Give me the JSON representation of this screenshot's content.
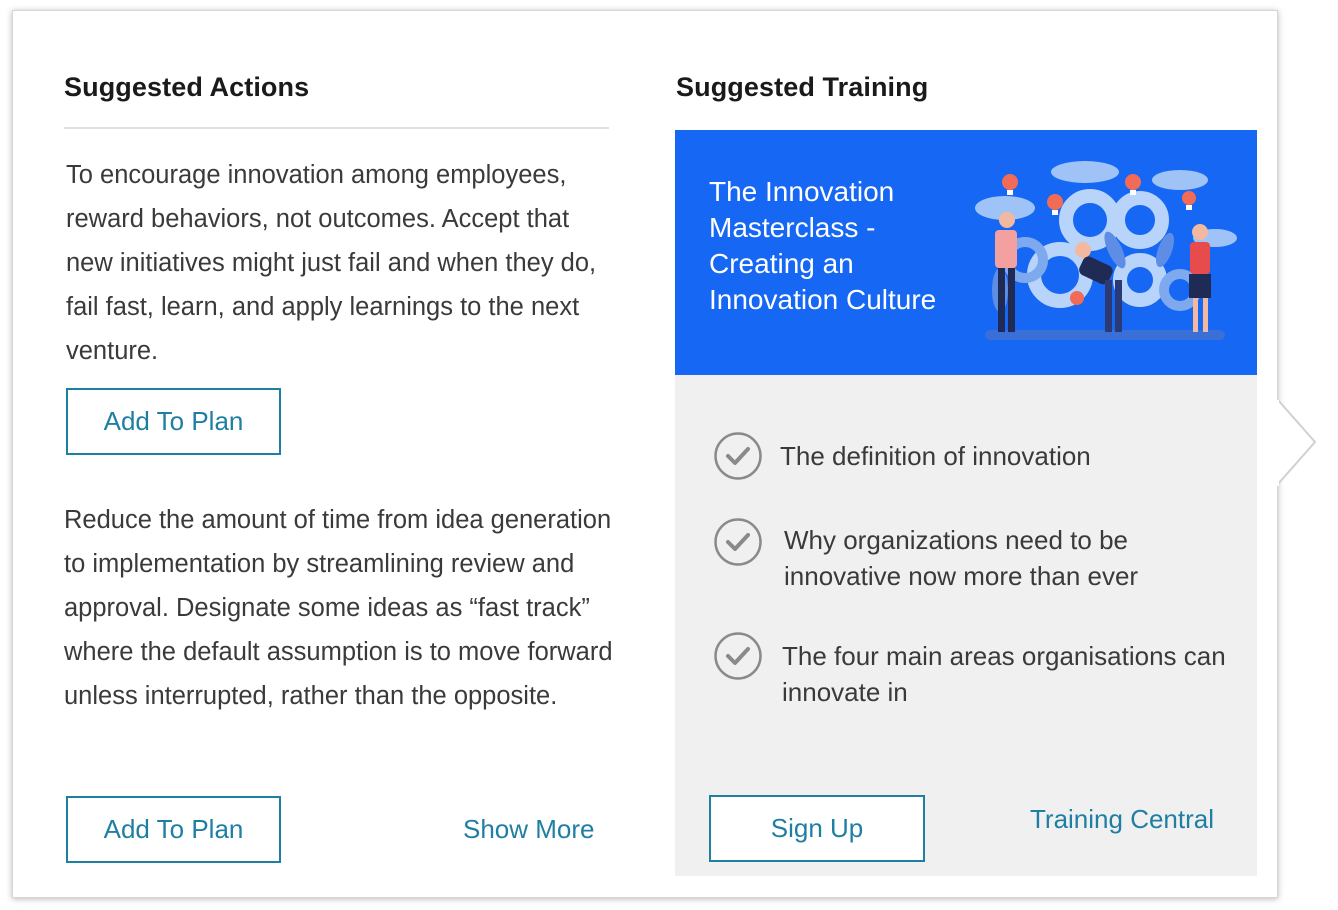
{
  "actions": {
    "title": "Suggested Actions",
    "items": [
      {
        "text": "To encourage innovation among employees, reward behaviors, not outcomes.  Accept that new initiatives might just fail and when they do, fail fast, learn, and apply learnings to the next venture.",
        "button_label": "Add To Plan"
      },
      {
        "text": "Reduce the amount of time from idea generation to implementation by streamlining review and approval. Designate some ideas as “fast track” where the default assumption is to move forward unless interrupted, rather than the opposite.",
        "button_label": "Add To Plan"
      }
    ],
    "show_more_label": "Show More"
  },
  "training": {
    "title": "Suggested Training",
    "course_title": "The Innovation Masterclass - Creating an Innovation Culture",
    "banner_image_icon": "innovation-gears-illustration",
    "bullets": [
      "The definition of innovation",
      "Why organizations need to be innovative now more than ever",
      "The four main areas organisations can innovate in"
    ],
    "bullet_icon": "check-circle-icon",
    "sign_up_label": "Sign Up",
    "central_link_label": "Training Central"
  },
  "colors": {
    "accent": "#1f7fa3",
    "banner": "#1667f3",
    "panel_bg": "#f0f0f0"
  }
}
